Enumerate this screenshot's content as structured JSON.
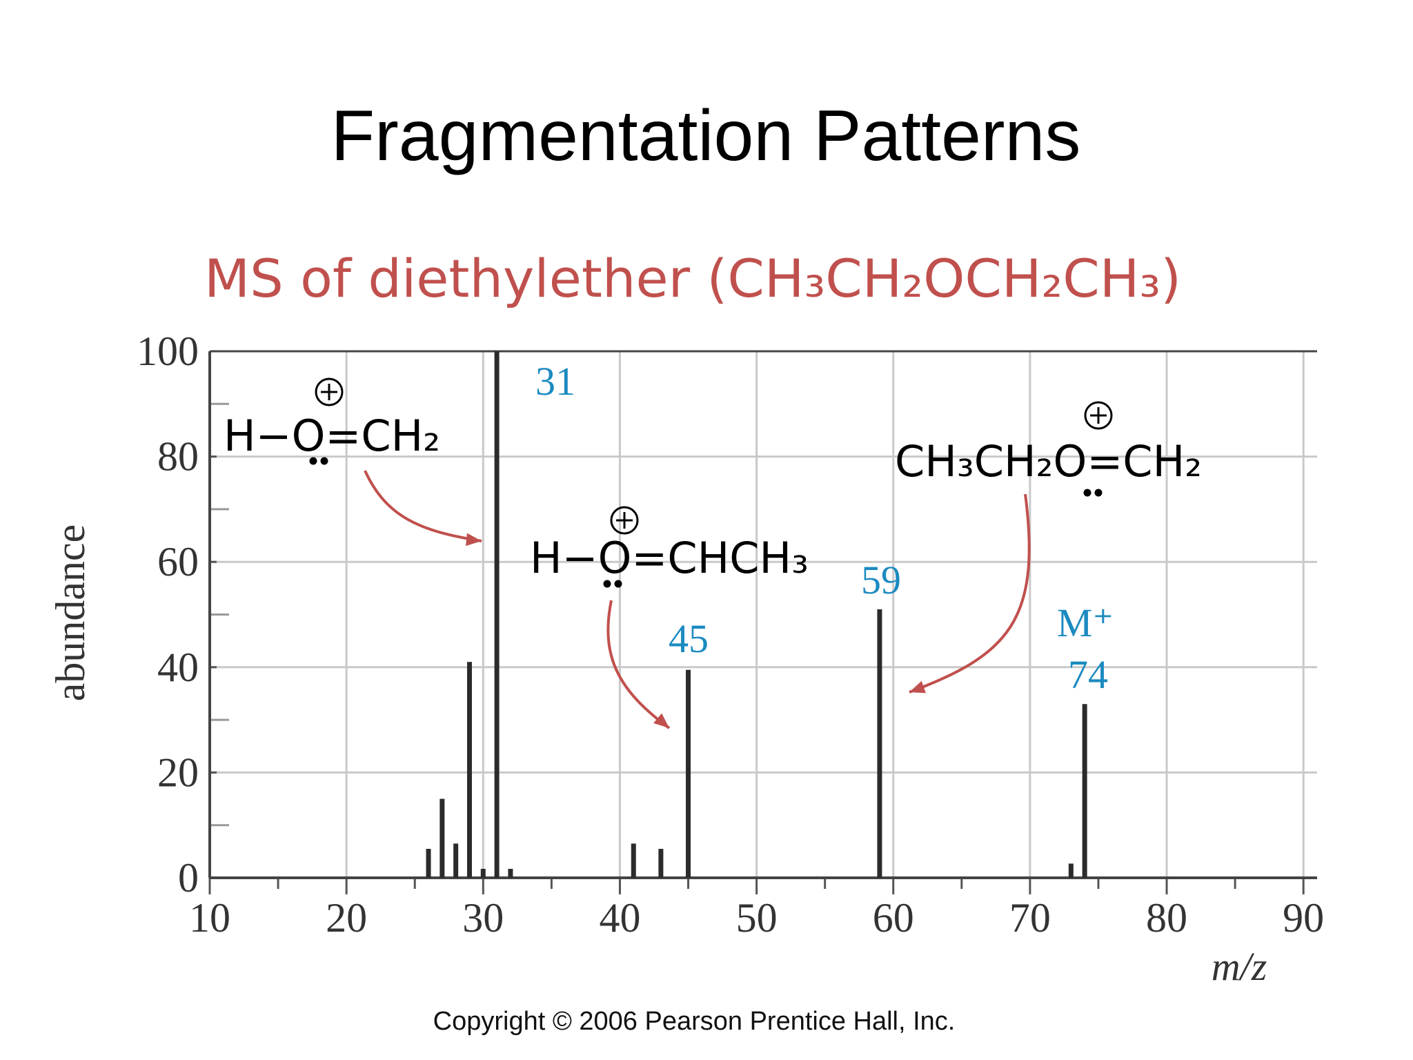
{
  "slide_title": "Fragmentation Patterns",
  "copyright": "Copyright © 2006 Pearson Prentice Hall, Inc.",
  "chart_data": {
    "type": "bar",
    "title": "MS of diethylether (CH₃CH₂OCH₂CH₃)",
    "x_label": "m/z",
    "y_label": "abundance",
    "x": [
      26,
      27,
      28,
      29,
      30,
      31,
      32,
      41,
      43,
      45,
      59,
      73,
      74
    ],
    "values": [
      5.5,
      15,
      6.5,
      41,
      1.7,
      100,
      1.7,
      6.5,
      5.5,
      39.5,
      51,
      2.7,
      33
    ],
    "color": "#2b2b2b",
    "xlim": [
      10,
      91
    ],
    "xticks": [
      10,
      20,
      30,
      40,
      50,
      60,
      70,
      80,
      90
    ],
    "xminorticks": [
      15,
      25,
      35,
      45,
      55,
      65,
      75,
      85
    ],
    "ylim": [
      0,
      100
    ],
    "yticks": [
      0,
      20,
      40,
      60,
      80,
      100
    ],
    "yminorticks": [
      10,
      30,
      50,
      70,
      90
    ],
    "grid": true,
    "peak_labels": [
      "31",
      "45",
      "59",
      "M⁺",
      "74"
    ],
    "structures": [
      "H−O=CH₂",
      "H−O=CHCH₃",
      "CH₃CH₂O=CH₂"
    ]
  }
}
